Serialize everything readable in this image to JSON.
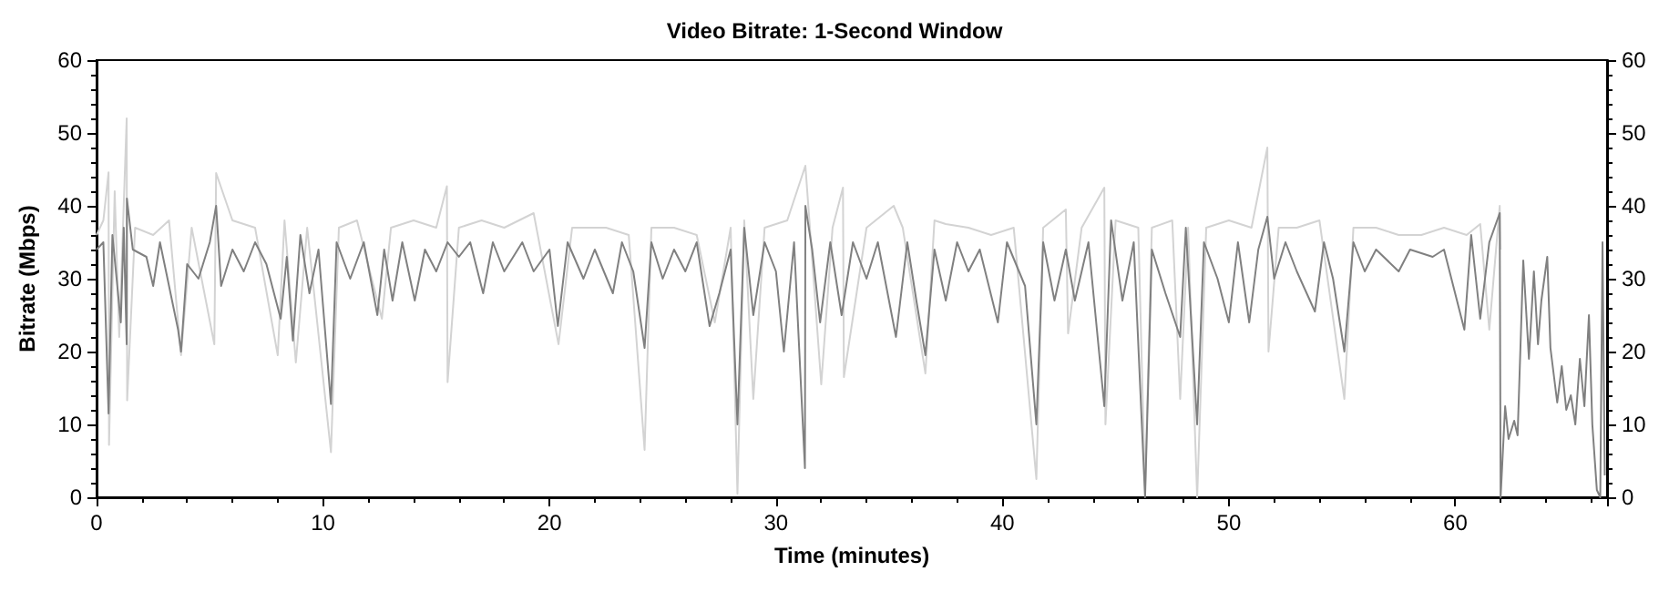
{
  "chart_data": {
    "type": "line",
    "title": "Video Bitrate: 1-Second Window",
    "xlabel": "Time (minutes)",
    "ylabel": "Bitrate (Mbps)",
    "xlim": [
      0,
      66.7
    ],
    "xticks": [
      0,
      10,
      20,
      30,
      40,
      50,
      60
    ],
    "ylim": [
      0,
      60
    ],
    "yticks": [
      0,
      10,
      20,
      30,
      40,
      50,
      60
    ],
    "y2lim": [
      0,
      60
    ],
    "y2ticks": [
      0,
      10,
      20,
      30,
      40,
      50,
      60
    ],
    "grid": false,
    "marker": "none",
    "line_style": "solid",
    "series": [
      {
        "color": "#d3d3d3",
        "x": [
          0,
          0.3,
          0.53,
          0.55,
          0.8,
          1.0,
          1.33,
          1.35,
          1.7,
          2.5,
          3.2,
          3.73,
          4.2,
          5.2,
          5.28,
          6.0,
          7.0,
          8.0,
          8.3,
          8.8,
          9.3,
          10.35,
          10.7,
          11.5,
          12.6,
          13.0,
          14.0,
          15.0,
          15.47,
          15.5,
          16.0,
          17.0,
          18.0,
          19.3,
          20.4,
          21.0,
          22.5,
          23.5,
          24.2,
          24.5,
          25.5,
          26.5,
          27.3,
          28.0,
          28.3,
          28.6,
          29.0,
          29.5,
          30.5,
          31.3,
          31.5,
          32.0,
          32.5,
          32.96,
          33.0,
          34.0,
          35.2,
          35.6,
          36.6,
          37.0,
          37.5,
          38.5,
          39.5,
          40.5,
          41.5,
          41.8,
          42.8,
          42.9,
          43.5,
          44.5,
          44.55,
          45.0,
          46.0,
          46.3,
          46.6,
          47.5,
          47.85,
          48.2,
          48.6,
          49.0,
          50.0,
          51.0,
          51.7,
          51.75,
          52.2,
          53.0,
          54.0,
          55.1,
          55.5,
          56.5,
          57.5,
          58.5,
          59.5,
          60.5,
          61.1,
          61.5,
          61.96,
          62.0
        ],
        "values": [
          36,
          38,
          44.6,
          7.2,
          42,
          22,
          52,
          13.3,
          37,
          36,
          38,
          19.5,
          37,
          21,
          44.5,
          38,
          37,
          19.5,
          38,
          18.5,
          37,
          6.2,
          37,
          38,
          24.5,
          37,
          38,
          37,
          42.7,
          15.8,
          37,
          38,
          37,
          39,
          21,
          37,
          37,
          36,
          6.5,
          37,
          37,
          36,
          24,
          37,
          0.5,
          38,
          13.5,
          37,
          38,
          45.5,
          37,
          15.5,
          37,
          42.5,
          16.5,
          37,
          40,
          37,
          17,
          38,
          37.5,
          37,
          36,
          37,
          2.5,
          37,
          39.5,
          22.5,
          37,
          42.5,
          10,
          38,
          37,
          1,
          37,
          38,
          13.5,
          37,
          0,
          37,
          38,
          37,
          48,
          20,
          37,
          37,
          38,
          13.5,
          37,
          37,
          36,
          36,
          37,
          36,
          37.5,
          23,
          40,
          34
        ]
      },
      {
        "color": "#808080",
        "x": [
          0,
          0.3,
          0.53,
          0.7,
          1.07,
          1.2,
          1.33,
          1.34,
          1.6,
          2.2,
          2.5,
          2.8,
          3.6,
          3.73,
          4.0,
          4.5,
          5.0,
          5.28,
          5.5,
          6.0,
          6.5,
          7.0,
          7.5,
          8.13,
          8.4,
          8.67,
          9.0,
          9.4,
          9.8,
          10.35,
          10.6,
          11.2,
          11.8,
          12.4,
          12.7,
          13.07,
          13.5,
          14.05,
          14.5,
          15.0,
          15.5,
          16.0,
          16.5,
          17.07,
          17.5,
          18.0,
          18.8,
          19.3,
          20.0,
          20.37,
          20.8,
          21.5,
          22.0,
          22.8,
          23.2,
          23.7,
          24.2,
          24.5,
          25.0,
          25.5,
          26.0,
          26.5,
          27.07,
          27.5,
          28.0,
          28.3,
          28.6,
          29.0,
          29.5,
          30.0,
          30.35,
          30.8,
          31.28,
          31.3,
          31.6,
          31.95,
          32.4,
          32.9,
          33.4,
          34.0,
          34.5,
          35.3,
          35.8,
          36.2,
          36.6,
          37.0,
          37.5,
          38.0,
          38.5,
          39.0,
          39.8,
          40.2,
          41.0,
          41.5,
          41.8,
          42.3,
          42.8,
          43.2,
          43.8,
          44.5,
          44.8,
          45.3,
          45.8,
          46.3,
          46.6,
          47.2,
          47.85,
          48.1,
          48.6,
          48.9,
          49.5,
          50.0,
          50.4,
          50.9,
          51.3,
          51.7,
          52.0,
          52.5,
          53.0,
          53.8,
          54.2,
          54.6,
          55.1,
          55.5,
          56.0,
          56.5,
          57.5,
          58.0,
          59.0,
          59.5,
          60.4,
          60.7,
          61.1,
          61.5,
          61.96,
          62.0,
          62.2,
          62.35,
          62.6,
          62.75,
          63.0,
          63.25,
          63.47,
          63.65,
          63.8,
          64.06,
          64.2,
          64.5,
          64.7,
          64.9,
          65.1,
          65.3,
          65.5,
          65.7,
          65.9,
          66.05,
          66.25,
          66.4,
          66.5,
          66.6
        ],
        "values": [
          34,
          35,
          11.5,
          36,
          24,
          37,
          21,
          41,
          34,
          33,
          29,
          35,
          23,
          20,
          32,
          30,
          35,
          40,
          29,
          34,
          31,
          35,
          32,
          24.5,
          33,
          21.5,
          36,
          28,
          34,
          12.8,
          35,
          30,
          35,
          25,
          34,
          27,
          35,
          27,
          34,
          31,
          35,
          33,
          35,
          28,
          35,
          31,
          35,
          31,
          34,
          23.5,
          35,
          30,
          34,
          28,
          35,
          31,
          20.5,
          35,
          30,
          34,
          31,
          35,
          23.5,
          28,
          34,
          10,
          37,
          25,
          35,
          31,
          20,
          35,
          4,
          40,
          34,
          24,
          35,
          25,
          35,
          30,
          35,
          22,
          35,
          27,
          19.5,
          34,
          27,
          35,
          31,
          34,
          24,
          35,
          29,
          10,
          35,
          27,
          34,
          27,
          35,
          12.5,
          38,
          27,
          35,
          0,
          34,
          28,
          22,
          37,
          10,
          35,
          30,
          24,
          35,
          24,
          34,
          38.5,
          30,
          35,
          31,
          25.5,
          35,
          30,
          20,
          35,
          31,
          34,
          31,
          34,
          33,
          34,
          23,
          36,
          24.5,
          35,
          39,
          0,
          12.5,
          8,
          10.5,
          8.5,
          32.5,
          19,
          31,
          21,
          27,
          33,
          20.5,
          13,
          18,
          12,
          14,
          10,
          19,
          12.5,
          25,
          10,
          1,
          0,
          35,
          3
        ]
      }
    ]
  }
}
